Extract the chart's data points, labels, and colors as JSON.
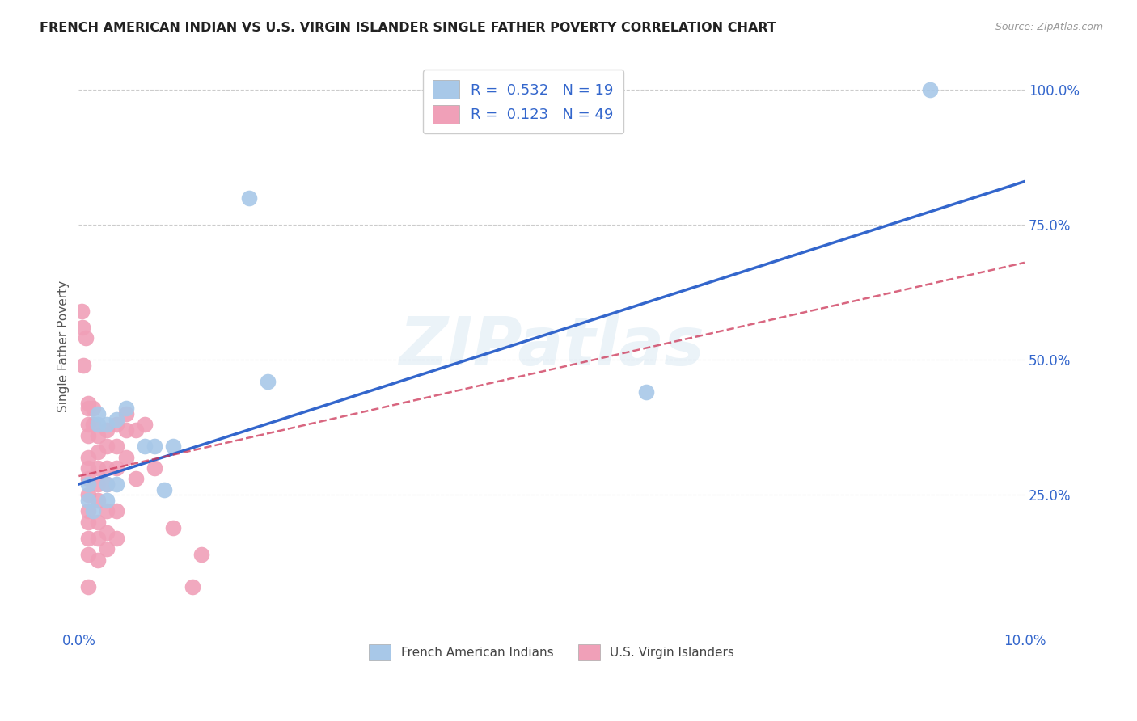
{
  "title": "FRENCH AMERICAN INDIAN VS U.S. VIRGIN ISLANDER SINGLE FATHER POVERTY CORRELATION CHART",
  "source": "Source: ZipAtlas.com",
  "ylabel": "Single Father Poverty",
  "watermark": "ZIPatlas",
  "blue_R": 0.532,
  "blue_N": 19,
  "pink_R": 0.123,
  "pink_N": 49,
  "blue_color": "#a8c8e8",
  "pink_color": "#f0a0b8",
  "trendline_blue_color": "#3366cc",
  "trendline_pink_color": "#cc3355",
  "legend_blue_label": "French American Indians",
  "legend_pink_label": "U.S. Virgin Islanders",
  "xmin": 0.0,
  "xmax": 0.1,
  "ymin": 0.0,
  "ymax": 1.05,
  "yticks": [
    0.0,
    0.25,
    0.5,
    0.75,
    1.0
  ],
  "ytick_labels": [
    "",
    "25.0%",
    "50.0%",
    "75.0%",
    "100.0%"
  ],
  "blue_points": [
    [
      0.001,
      0.27
    ],
    [
      0.001,
      0.24
    ],
    [
      0.0015,
      0.22
    ],
    [
      0.002,
      0.38
    ],
    [
      0.002,
      0.4
    ],
    [
      0.003,
      0.38
    ],
    [
      0.003,
      0.27
    ],
    [
      0.003,
      0.24
    ],
    [
      0.004,
      0.39
    ],
    [
      0.004,
      0.27
    ],
    [
      0.005,
      0.41
    ],
    [
      0.007,
      0.34
    ],
    [
      0.008,
      0.34
    ],
    [
      0.009,
      0.26
    ],
    [
      0.01,
      0.34
    ],
    [
      0.02,
      0.46
    ],
    [
      0.018,
      0.8
    ],
    [
      0.06,
      0.44
    ],
    [
      0.09,
      1.0
    ]
  ],
  "pink_points": [
    [
      0.0003,
      0.59
    ],
    [
      0.0004,
      0.56
    ],
    [
      0.0005,
      0.49
    ],
    [
      0.0007,
      0.54
    ],
    [
      0.001,
      0.42
    ],
    [
      0.001,
      0.41
    ],
    [
      0.001,
      0.38
    ],
    [
      0.001,
      0.36
    ],
    [
      0.001,
      0.32
    ],
    [
      0.001,
      0.3
    ],
    [
      0.001,
      0.28
    ],
    [
      0.001,
      0.25
    ],
    [
      0.001,
      0.22
    ],
    [
      0.001,
      0.2
    ],
    [
      0.001,
      0.17
    ],
    [
      0.001,
      0.14
    ],
    [
      0.001,
      0.08
    ],
    [
      0.0015,
      0.41
    ],
    [
      0.0015,
      0.38
    ],
    [
      0.002,
      0.36
    ],
    [
      0.002,
      0.33
    ],
    [
      0.002,
      0.3
    ],
    [
      0.002,
      0.27
    ],
    [
      0.002,
      0.24
    ],
    [
      0.002,
      0.2
    ],
    [
      0.002,
      0.17
    ],
    [
      0.002,
      0.13
    ],
    [
      0.003,
      0.37
    ],
    [
      0.003,
      0.34
    ],
    [
      0.003,
      0.3
    ],
    [
      0.003,
      0.27
    ],
    [
      0.003,
      0.22
    ],
    [
      0.003,
      0.18
    ],
    [
      0.003,
      0.15
    ],
    [
      0.004,
      0.38
    ],
    [
      0.004,
      0.34
    ],
    [
      0.004,
      0.3
    ],
    [
      0.004,
      0.22
    ],
    [
      0.004,
      0.17
    ],
    [
      0.005,
      0.4
    ],
    [
      0.005,
      0.37
    ],
    [
      0.005,
      0.32
    ],
    [
      0.006,
      0.37
    ],
    [
      0.006,
      0.28
    ],
    [
      0.007,
      0.38
    ],
    [
      0.008,
      0.3
    ],
    [
      0.01,
      0.19
    ],
    [
      0.012,
      0.08
    ],
    [
      0.013,
      0.14
    ]
  ],
  "blue_trend": [
    0.0,
    0.1,
    0.27,
    0.83
  ],
  "pink_trend": [
    0.0,
    0.1,
    0.285,
    0.68
  ]
}
